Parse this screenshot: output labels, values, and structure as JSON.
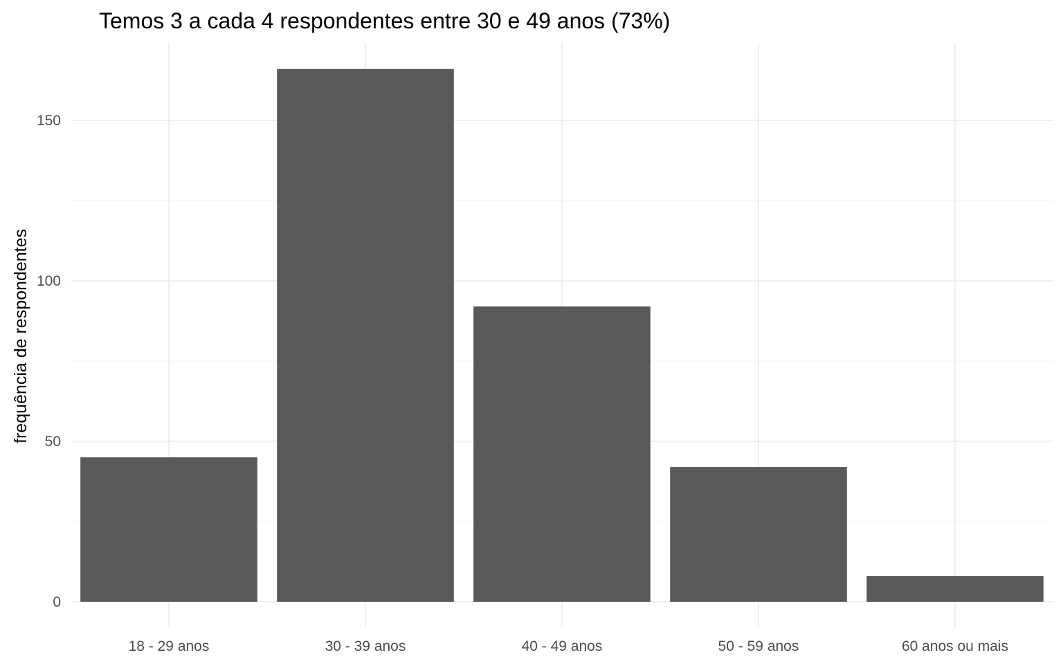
{
  "chart_data": {
    "type": "bar",
    "title": "Temos 3 a cada 4 respondentes entre 30 e 49 anos (73%)",
    "xlabel": "",
    "ylabel": "frequência de respondentes",
    "categories": [
      "18 - 29 anos",
      "30 - 39 anos",
      "40 - 49 anos",
      "50 - 59 anos",
      "60 anos ou mais"
    ],
    "values": [
      45,
      166,
      92,
      42,
      8
    ],
    "ylim": [
      0,
      166
    ],
    "yticks": [
      0,
      50,
      100,
      150
    ],
    "ytick_labels": [
      "0",
      "50",
      "100",
      "150"
    ],
    "grid": true,
    "legend": "none",
    "bar_color": "#595959",
    "grid_color": "#ebebeb",
    "background": "#ffffff"
  }
}
